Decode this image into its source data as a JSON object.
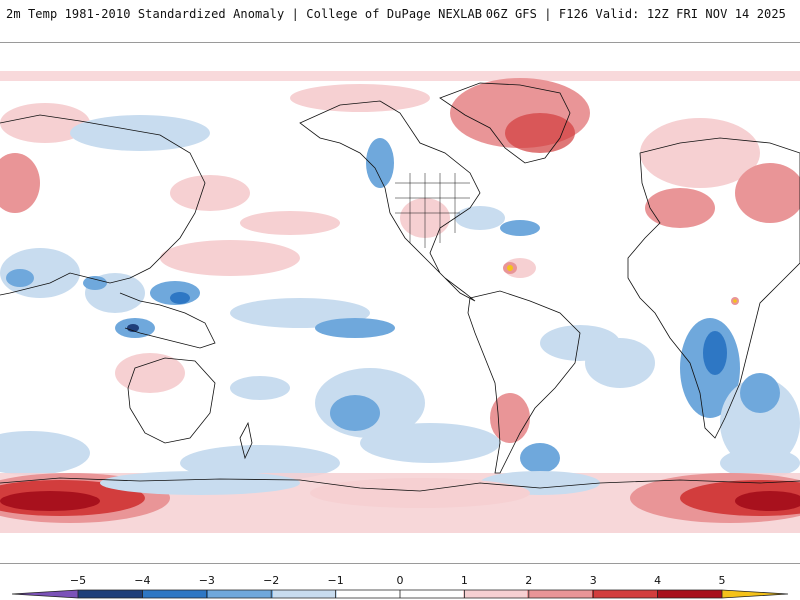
{
  "header": {
    "title_left": "2m Temp 1981-2010 Standardized Anomaly | College of DuPage NEXLAB",
    "title_right": "06Z GFS | F126 Valid: 12Z FRI NOV 14 2025"
  },
  "legend": {
    "labels": [
      "−5",
      "−4",
      "−3",
      "−2",
      "−1",
      "0",
      "1",
      "2",
      "3",
      "4",
      "5"
    ],
    "colors": {
      "lt_neg5": "#7b52b8",
      "neg5_neg4": "#1f3f7a",
      "neg4_neg3": "#2e77c4",
      "neg3_neg2": "#6fa8dc",
      "neg2_neg1": "#c8dcef",
      "neg1_pos1": "#ffffff",
      "pos1_pos2": "#f6d0d2",
      "pos2_pos3": "#e99597",
      "pos3_pos4": "#d23d3d",
      "pos4_pos5": "#a8111d",
      "gt_pos5": "#f4c21a"
    }
  },
  "map": {
    "palette": {
      "land_outline": "#111111",
      "panel_border": "#9a9a9a"
    }
  }
}
